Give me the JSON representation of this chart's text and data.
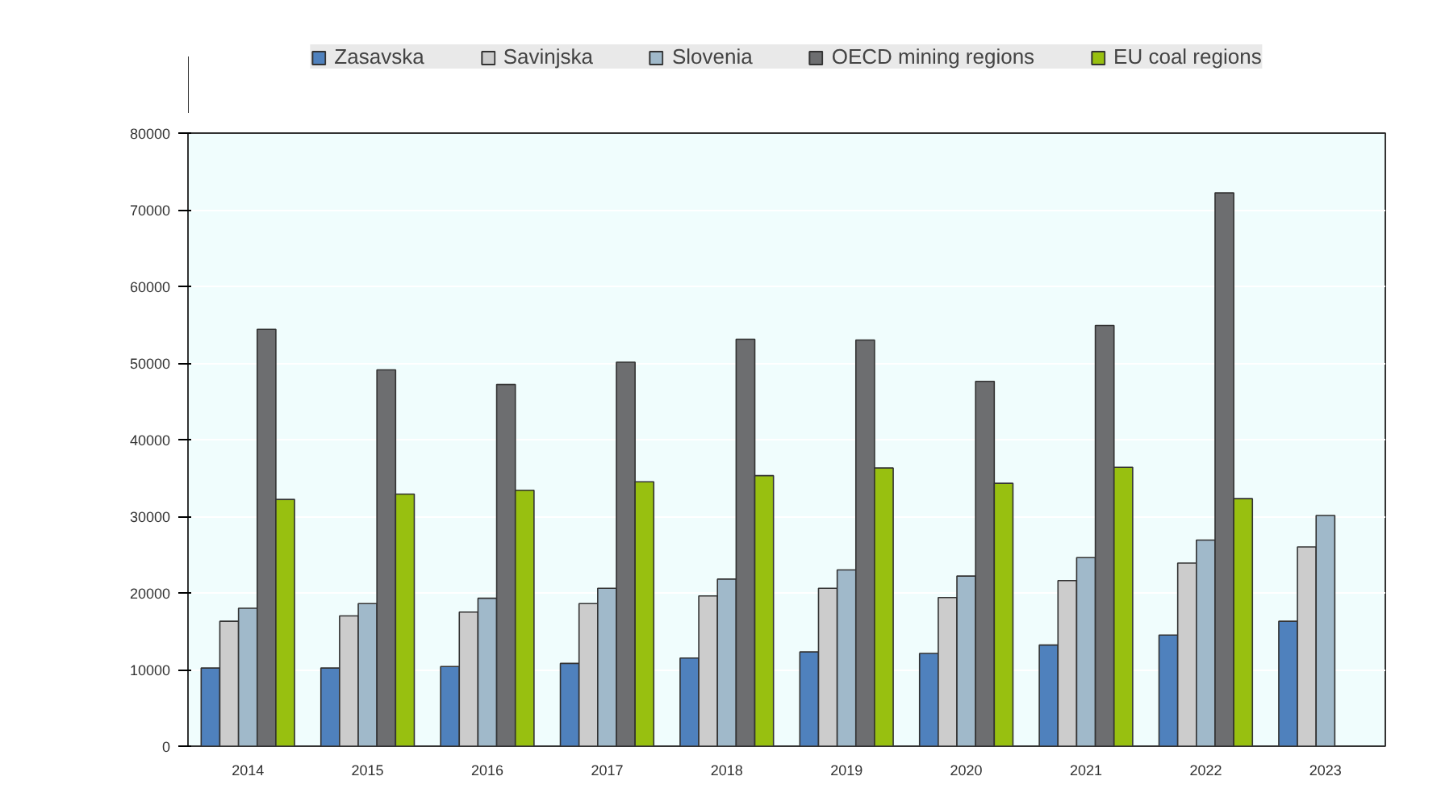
{
  "chart_data": {
    "type": "bar",
    "categories": [
      "2014",
      "2015",
      "2016",
      "2017",
      "2018",
      "2019",
      "2020",
      "2021",
      "2022",
      "2023"
    ],
    "series": [
      {
        "name": "Zasavska",
        "color": "#4f81bd",
        "values": [
          10200,
          10200,
          10400,
          10800,
          11500,
          12300,
          12100,
          13200,
          14500,
          16300
        ]
      },
      {
        "name": "Savinjska",
        "color": "#cccccc",
        "values": [
          16300,
          17000,
          17500,
          18600,
          19600,
          20600,
          19400,
          21600,
          23900,
          26000
        ]
      },
      {
        "name": "Slovenia",
        "color": "#a0b9ca",
        "values": [
          18000,
          18600,
          19300,
          20600,
          21800,
          23000,
          22200,
          24600,
          26900,
          30100
        ]
      },
      {
        "name": "OECD mining regions",
        "color": "#6d6e70",
        "values": [
          54400,
          49100,
          47200,
          50100,
          53100,
          53000,
          47600,
          54900,
          72200,
          null
        ]
      },
      {
        "name": "EU coal regions",
        "color": "#98c010",
        "values": [
          32200,
          32900,
          33400,
          34500,
          35300,
          36300,
          34300,
          36400,
          32300,
          null
        ]
      }
    ],
    "ylim": [
      0,
      80000
    ],
    "yticks": [
      0,
      10000,
      20000,
      30000,
      40000,
      50000,
      60000,
      70000,
      80000
    ],
    "grid": "y",
    "legend": "top"
  }
}
